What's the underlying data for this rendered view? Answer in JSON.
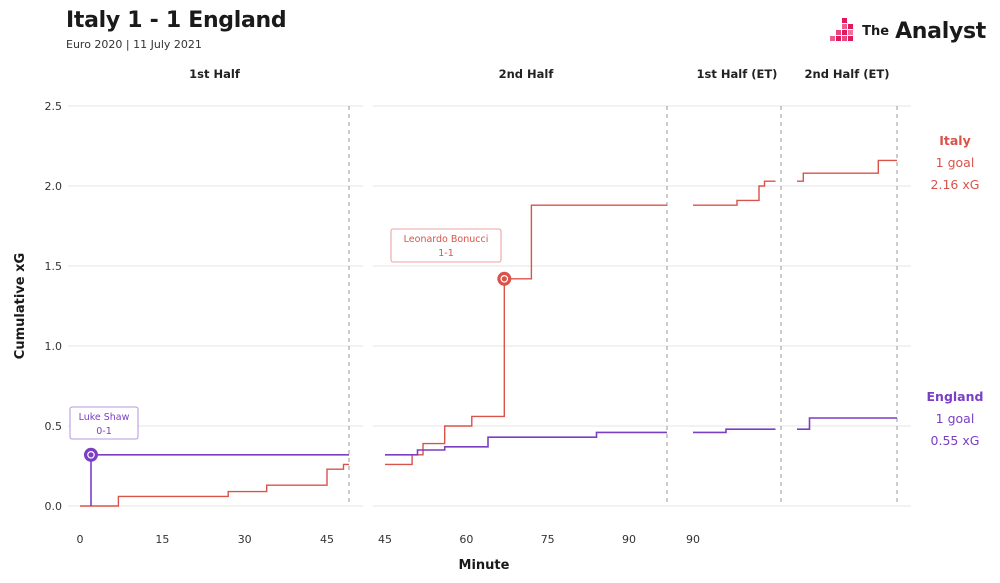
{
  "header": {
    "title": "Italy 1 - 1 England",
    "subtitle": "Euro 2020 | 11 July 2021"
  },
  "brand": {
    "the": "The",
    "name": "Analyst",
    "icon": "analyst-logo-icon"
  },
  "colors": {
    "italy": "#d9534a",
    "england": "#7b3fc4",
    "grid": "#e6e6e6",
    "divider": "#9a9a9a"
  },
  "chart_data": {
    "type": "line",
    "step": true,
    "xlabel": "Minute",
    "ylabel": "Cumulative xG",
    "ylim": [
      0,
      2.5
    ],
    "yticks": [
      "0.0",
      "0.5",
      "1.0",
      "1.5",
      "2.0",
      "2.5"
    ],
    "panels": [
      {
        "label": "1st Half",
        "xlim": [
          0,
          49
        ],
        "ticks": [
          0,
          15,
          30,
          45
        ]
      },
      {
        "label": "2nd Half",
        "xlim": [
          45,
          97
        ],
        "ticks": [
          45,
          60,
          75,
          90
        ]
      },
      {
        "label": "1st Half (ET)",
        "xlim": [
          90,
          106
        ],
        "ticks": [
          90
        ]
      },
      {
        "label": "2nd Half (ET)",
        "xlim": [
          105,
          121
        ],
        "ticks": []
      }
    ],
    "series": [
      {
        "name": "Italy",
        "color": "#d9534a",
        "label_lines": [
          "Italy",
          "1 goal",
          "2.16 xG"
        ],
        "segments": [
          [
            [
              0,
              0
            ],
            [
              7,
              0
            ],
            [
              7,
              0.06
            ],
            [
              27,
              0.06
            ],
            [
              27,
              0.09
            ],
            [
              34,
              0.09
            ],
            [
              34,
              0.13
            ],
            [
              45,
              0.13
            ],
            [
              45,
              0.23
            ],
            [
              48,
              0.23
            ],
            [
              48,
              0.26
            ],
            [
              49,
              0.26
            ]
          ],
          [
            [
              45,
              0.26
            ],
            [
              50,
              0.26
            ],
            [
              50,
              0.32
            ],
            [
              52,
              0.32
            ],
            [
              52,
              0.39
            ],
            [
              56,
              0.39
            ],
            [
              56,
              0.5
            ],
            [
              61,
              0.5
            ],
            [
              61,
              0.56
            ],
            [
              67,
              0.56
            ],
            [
              67,
              1.42
            ],
            [
              72,
              1.42
            ],
            [
              72,
              1.88
            ],
            [
              97,
              1.88
            ]
          ],
          [
            [
              90,
              1.88
            ],
            [
              98,
              1.88
            ],
            [
              98,
              1.91
            ],
            [
              102,
              1.91
            ],
            [
              102,
              2.0
            ],
            [
              103,
              2.0
            ],
            [
              103,
              2.03
            ],
            [
              105,
              2.03
            ]
          ],
          [
            [
              105,
              2.03
            ],
            [
              106,
              2.03
            ],
            [
              106,
              2.08
            ],
            [
              118,
              2.08
            ],
            [
              118,
              2.16
            ],
            [
              121,
              2.16
            ]
          ]
        ]
      },
      {
        "name": "England",
        "color": "#7b3fc4",
        "label_lines": [
          "England",
          "1 goal",
          "0.55 xG"
        ],
        "segments": [
          [
            [
              2,
              0
            ],
            [
              2,
              0.32
            ],
            [
              49,
              0.32
            ]
          ],
          [
            [
              45,
              0.32
            ],
            [
              51,
              0.32
            ],
            [
              51,
              0.35
            ],
            [
              56,
              0.35
            ],
            [
              56,
              0.37
            ],
            [
              64,
              0.37
            ],
            [
              64,
              0.43
            ],
            [
              84,
              0.43
            ],
            [
              84,
              0.46
            ],
            [
              97,
              0.46
            ]
          ],
          [
            [
              90,
              0.46
            ],
            [
              96,
              0.46
            ],
            [
              96,
              0.48
            ],
            [
              105,
              0.48
            ]
          ],
          [
            [
              105,
              0.48
            ],
            [
              107,
              0.48
            ],
            [
              107,
              0.55
            ],
            [
              121,
              0.55
            ]
          ]
        ]
      }
    ],
    "goals": [
      {
        "team": "England",
        "player": "Luke Shaw",
        "score": "0-1",
        "minute": 2,
        "xg": 0.32,
        "panel": 0
      },
      {
        "team": "Italy",
        "player": "Leonardo Bonucci",
        "score": "1-1",
        "minute": 67,
        "xg": 1.42,
        "panel": 1
      }
    ]
  }
}
